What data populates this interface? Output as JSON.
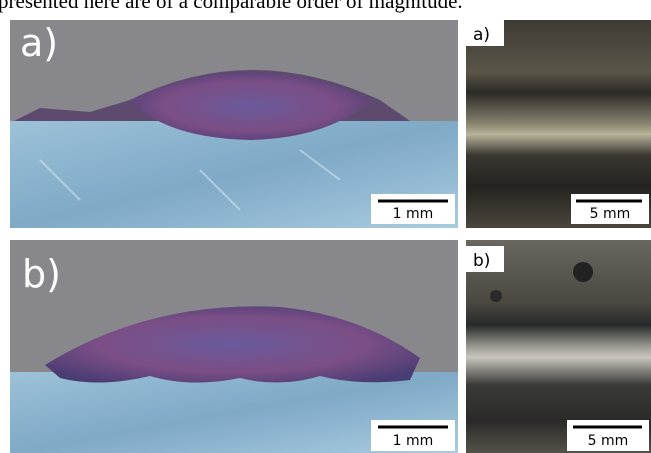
{
  "header": {
    "text": "presented here are of a comparable order of magnitude."
  },
  "panels": [
    {
      "label": "a)",
      "scale": "1 mm"
    },
    {
      "label": "a)",
      "scale": "5 mm"
    },
    {
      "label": "b)",
      "scale": "1 mm"
    },
    {
      "label": "b)",
      "scale": "5 mm"
    }
  ]
}
